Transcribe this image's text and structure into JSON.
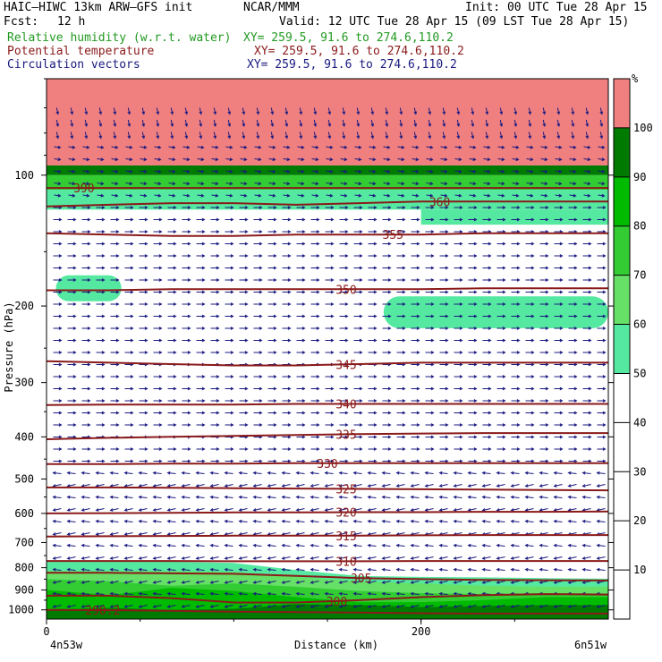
{
  "header": {
    "model": "HAIC–HIWC 13km ARW–GFS init",
    "org": "NCAR/MMM",
    "init": "Init: 00 UTC Tue 28 Apr 15",
    "fcst_label": "Fcst:",
    "fcst_value": "12 h",
    "valid": "Valid: 12 UTC Tue 28 Apr 15 (09 LST Tue 28 Apr 15)",
    "fields": [
      {
        "name": "Relative humidity (w.r.t. water)",
        "xy": "XY= 259.5, 91.6 to 274.6,110.2",
        "color": "#229922"
      },
      {
        "name": "Potential temperature",
        "xy": "XY= 259.5, 91.6 to 274.6,110.2",
        "color": "#8b1a1a"
      },
      {
        "name": "Circulation vectors",
        "xy": "XY= 259.5, 91.6 to 274.6,110.2",
        "color": "#1a1a80"
      }
    ]
  },
  "chart_data": {
    "type": "heatmap",
    "xlabel": "Distance (km)",
    "ylabel": "Pressure (hPa)",
    "xlim": [
      0,
      300
    ],
    "ylim": [
      1050,
      60
    ],
    "y_log": true,
    "x_ticks": [
      "0",
      "200"
    ],
    "x_tick_values": [
      0,
      200
    ],
    "x_end_labels": [
      "4n53w",
      "6n51w"
    ],
    "y_ticks": [
      "100",
      "200",
      "300",
      "400",
      "500",
      "600",
      "700",
      "800",
      "900",
      "1000"
    ],
    "y_tick_values": [
      100,
      200,
      300,
      400,
      500,
      600,
      700,
      800,
      900,
      1000
    ],
    "colorbar": {
      "unit": "%",
      "levels": [
        "10",
        "20",
        "30",
        "40",
        "50",
        "60",
        "70",
        "80",
        "90",
        "100"
      ],
      "bins": [
        {
          "from": 0,
          "to": 50,
          "color": "#ffffff"
        },
        {
          "from": 50,
          "to": 60,
          "color": "#55e8a0"
        },
        {
          "from": 60,
          "to": 70,
          "color": "#66e066"
        },
        {
          "from": 70,
          "to": 80,
          "color": "#33cc33"
        },
        {
          "from": 80,
          "to": 90,
          "color": "#00bb00"
        },
        {
          "from": 90,
          "to": 100,
          "color": "#007a00"
        },
        {
          "from": 100,
          "to": 110,
          "color": "#f08080"
        }
      ]
    },
    "theta_contours": [
      {
        "label": "300",
        "p": [
          928,
          928,
          940,
          962,
          962,
          950,
          935,
          925,
          920,
          922
        ],
        "label_x": 155
      },
      {
        "label": "305",
        "p": [
          822,
          822,
          824,
          826,
          835,
          845,
          850,
          853,
          855,
          856
        ],
        "label_x": 168
      },
      {
        "label": "310",
        "p": [
          772,
          772,
          772,
          773,
          773,
          773,
          772,
          772,
          772,
          772
        ],
        "label_x": 160
      },
      {
        "label": "315",
        "p": [
          678,
          677,
          676,
          675,
          675,
          675,
          674,
          673,
          673,
          673
        ],
        "label_x": 160
      },
      {
        "label": "320",
        "p": [
          600,
          599,
          598,
          597,
          597,
          596,
          596,
          595,
          595,
          594
        ],
        "label_x": 160
      },
      {
        "label": "325",
        "p": [
          523,
          523,
          524,
          525,
          526,
          527,
          528,
          529,
          530,
          531
        ],
        "label_x": 160
      },
      {
        "label": "330",
        "p": [
          462,
          462,
          461,
          461,
          460,
          460,
          460,
          460,
          460,
          460
        ],
        "label_x": 150
      },
      {
        "label": "335",
        "p": [
          405,
          402,
          400,
          398,
          396,
          394,
          393,
          392,
          392,
          392
        ],
        "label_x": 160
      },
      {
        "label": "340",
        "p": [
          338,
          337,
          337,
          337,
          336,
          336,
          336,
          336,
          336,
          336
        ],
        "label_x": 160
      },
      {
        "label": "345",
        "p": [
          268,
          270,
          272,
          274,
          274,
          272,
          270,
          270,
          270,
          270
        ],
        "label_x": 160
      },
      {
        "label": "350",
        "p": [
          184,
          184,
          183,
          183,
          183,
          183,
          183,
          182,
          182,
          182
        ],
        "label_x": 160
      },
      {
        "label": "355",
        "p": [
          136,
          137,
          138,
          138,
          137,
          137,
          137,
          136,
          136,
          136
        ],
        "label_x": 185
      },
      {
        "label": "360",
        "p": [
          118,
          117,
          116,
          116,
          117,
          116,
          115,
          115,
          115,
          115
        ],
        "label_x": 210
      },
      {
        "label": "390",
        "p": [
          107,
          107,
          107,
          107,
          107,
          107,
          107,
          107,
          107,
          107
        ],
        "label_x": 20
      },
      {
        "label": "290.2",
        "p": [
          1000,
          1002,
          1005,
          1010,
          1012,
          1015,
          1018,
          1020,
          1020,
          1020
        ],
        "label_x": 30
      }
    ],
    "rh_regions": [
      {
        "bin": 1,
        "top": [
          770,
          770,
          775,
          780,
          810,
          835,
          840,
          842,
          845,
          848
        ],
        "bottom": [
          1050,
          1050,
          1050,
          1050,
          1050,
          1050,
          1050,
          1050,
          1050,
          1050
        ]
      },
      {
        "bin": 2,
        "top": [
          815,
          815,
          815,
          818,
          840,
          860,
          870,
          880,
          885,
          885
        ],
        "bottom": [
          1050,
          1050,
          1050,
          1050,
          1050,
          1050,
          1050,
          1050,
          1050,
          1050
        ]
      },
      {
        "bin": 3,
        "top": [
          850,
          860,
          880,
          870,
          885,
          905,
          915,
          920,
          915,
          918
        ],
        "bottom": [
          1050,
          1050,
          1050,
          1050,
          1050,
          1050,
          1050,
          1050,
          1050,
          1050
        ]
      },
      {
        "bin": 4,
        "top": [
          900,
          925,
          890,
          905,
          935,
          960,
          960,
          950,
          935,
          935
        ],
        "bottom": [
          1050,
          1050,
          1050,
          1050,
          1050,
          1050,
          1050,
          1050,
          1050,
          1050
        ]
      },
      {
        "bin": 5,
        "top": [
          1000,
          990,
          1000,
          995,
          970,
          975,
          985,
          980,
          975,
          975
        ],
        "bottom": [
          1050,
          1050,
          1050,
          1050,
          1050,
          1050,
          1050,
          1050,
          1050,
          1050
        ]
      }
    ],
    "upper_bands": [
      {
        "bin": 6,
        "p_top": 60,
        "p_bottom": 95,
        "x_from": 0,
        "x_to": 300
      },
      {
        "bin": 5,
        "p_top": 95,
        "p_bottom": 100,
        "x_from": 0,
        "x_to": 300
      },
      {
        "bin": 3,
        "p_top": 100,
        "p_bottom": 108,
        "x_from": 0,
        "x_to": 300
      },
      {
        "bin": 1,
        "p_top": 108,
        "p_bottom": 120,
        "x_from": 0,
        "x_to": 300
      },
      {
        "bin": 1,
        "p_top": 120,
        "p_bottom": 130,
        "x_from": 200,
        "x_to": 300
      }
    ],
    "rh_blobs": [
      {
        "bin": 1,
        "x_from": 5,
        "x_to": 40,
        "p_top": 170,
        "p_bottom": 195
      },
      {
        "bin": 1,
        "x_from": 180,
        "x_to": 300,
        "p_top": 190,
        "p_bottom": 225
      }
    ]
  }
}
